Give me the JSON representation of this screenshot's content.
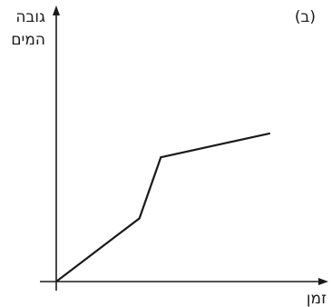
{
  "chart_data": {
    "type": "line",
    "panel_label": "(ב)",
    "ylabel_lines": [
      "גובה",
      "המים"
    ],
    "xlabel": "זמן",
    "xlim": [
      0,
      100
    ],
    "ylim": [
      0,
      100
    ],
    "grid": false,
    "series": [
      {
        "x": [
          0,
          35,
          44,
          90
        ],
        "y": [
          0,
          29,
          57,
          68
        ]
      }
    ]
  }
}
